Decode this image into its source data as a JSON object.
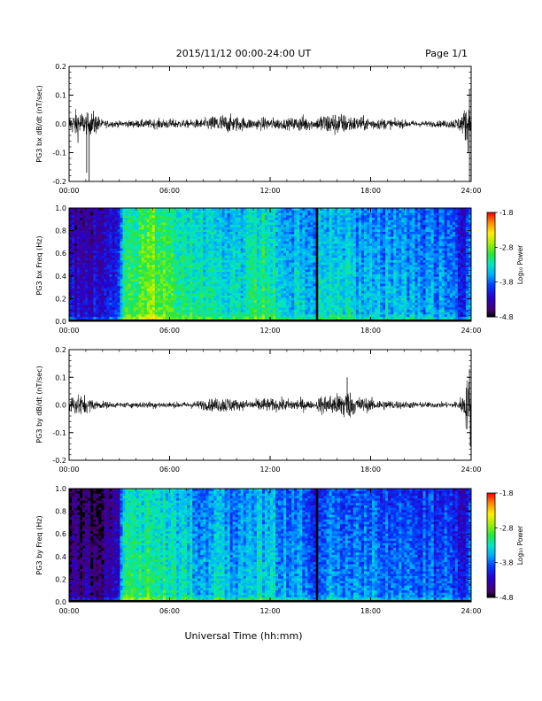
{
  "header": {
    "title": "2015/11/12  00:00-24:00 UT",
    "page": "Page 1/1"
  },
  "footer": {
    "xlabel": "Universal Time (hh:mm)"
  },
  "colors": {
    "trace": "#000000",
    "background": "#ffffff"
  },
  "colorbar": {
    "label": "Log₁₀ Power",
    "ticks": [
      "-1.8",
      "-2.8",
      "-3.8",
      "-4.8"
    ],
    "range": [
      -4.8,
      -1.8
    ]
  },
  "chart_data": [
    {
      "type": "line",
      "ylabel": "PG3 bx dB/dt (nT/sec)",
      "xlim": [
        0,
        24
      ],
      "xticks": [
        "00:00",
        "06:00",
        "12:00",
        "18:00",
        "24:00"
      ],
      "ylim": [
        -0.2,
        0.2
      ],
      "yticks": [
        "0.2",
        "0.1",
        "0.0",
        "-0.1",
        "-0.2"
      ],
      "envelope": {
        "hours": [
          0,
          0.5,
          1,
          1.5,
          2,
          3,
          4,
          5,
          6,
          7,
          8,
          9,
          9.5,
          10,
          11,
          11.5,
          12,
          13,
          14,
          14.7,
          15,
          16,
          17,
          18,
          19,
          20,
          21,
          22,
          22.5,
          23,
          23.5,
          23.8,
          24
        ],
        "amplitude": [
          0.03,
          0.06,
          0.04,
          0.05,
          0.015,
          0.012,
          0.015,
          0.018,
          0.02,
          0.015,
          0.02,
          0.04,
          0.035,
          0.03,
          0.02,
          0.025,
          0.025,
          0.02,
          0.035,
          0.015,
          0.04,
          0.045,
          0.03,
          0.025,
          0.02,
          0.015,
          0.012,
          0.012,
          0.015,
          0.02,
          0.04,
          0.1,
          0.03
        ]
      },
      "spikes": [
        {
          "hour": 1.05,
          "value": -0.17
        },
        {
          "hour": 1.2,
          "value": -0.2
        },
        {
          "hour": 23.9,
          "value": -0.21
        },
        {
          "hour": 23.9,
          "value": 0.12
        }
      ]
    },
    {
      "type": "heatmap",
      "ylabel": "PG3 bx Freq (Hz)",
      "xlim": [
        0,
        24
      ],
      "xticks": [
        "00:00",
        "06:00",
        "12:00",
        "18:00",
        "24:00"
      ],
      "ylim": [
        0,
        1
      ],
      "yticks": [
        "1.0",
        "0.8",
        "0.6",
        "0.4",
        "0.2",
        "0.0"
      ],
      "gap_hour": 14.8,
      "power_profile": {
        "hours": [
          0,
          1,
          2,
          3,
          3.2,
          4,
          5,
          6,
          7,
          8,
          9,
          10,
          11,
          12,
          13,
          14,
          14.8,
          15,
          16,
          17,
          18,
          19,
          20,
          21,
          22,
          23,
          23.5,
          24
        ],
        "log_power": [
          -4.2,
          -4.3,
          -4.1,
          -4.0,
          -3.0,
          -2.9,
          -2.75,
          -2.9,
          -3.1,
          -3.2,
          -3.15,
          -3.35,
          -3.05,
          -3.15,
          -3.35,
          -3.4,
          -3.5,
          -3.3,
          -3.3,
          -3.4,
          -3.5,
          -3.45,
          -3.5,
          -3.55,
          -3.6,
          -3.6,
          -4.0,
          -3.4
        ]
      }
    },
    {
      "type": "line",
      "ylabel": "PG3 by dB/dt (nT/sec)",
      "xlim": [
        0,
        24
      ],
      "xticks": [
        "00:00",
        "06:00",
        "12:00",
        "18:00",
        "24:00"
      ],
      "ylim": [
        -0.2,
        0.2
      ],
      "yticks": [
        "0.2",
        "0.1",
        "0.0",
        "-0.1",
        "-0.2"
      ],
      "envelope": {
        "hours": [
          0,
          0.5,
          1,
          1.5,
          2,
          3,
          4,
          5,
          6,
          7,
          8,
          9,
          9.5,
          10,
          11,
          11.5,
          12,
          13,
          14,
          14.7,
          15,
          16,
          16.5,
          17,
          18,
          19,
          20,
          21,
          22,
          23,
          23.5,
          23.8,
          24
        ],
        "amplitude": [
          0.03,
          0.05,
          0.035,
          0.02,
          0.015,
          0.01,
          0.012,
          0.015,
          0.012,
          0.012,
          0.02,
          0.03,
          0.035,
          0.02,
          0.02,
          0.03,
          0.025,
          0.025,
          0.025,
          0.01,
          0.04,
          0.045,
          0.07,
          0.04,
          0.025,
          0.02,
          0.015,
          0.012,
          0.012,
          0.012,
          0.04,
          0.12,
          0.06
        ]
      },
      "spikes": [
        {
          "hour": 16.6,
          "value": 0.1
        },
        {
          "hour": 23.95,
          "value": -0.15
        },
        {
          "hour": 23.9,
          "value": 0.13
        }
      ]
    },
    {
      "type": "heatmap",
      "ylabel": "PG3 by Freq (Hz)",
      "xlim": [
        0,
        24
      ],
      "xticks": [
        "00:00",
        "06:00",
        "12:00",
        "18:00",
        "24:00"
      ],
      "ylim": [
        0,
        1
      ],
      "yticks": [
        "1.0",
        "0.8",
        "0.6",
        "0.4",
        "0.2",
        "0.0"
      ],
      "gap_hour": 14.8,
      "power_profile": {
        "hours": [
          0,
          1,
          2,
          3,
          3.2,
          4,
          5,
          6,
          7,
          8,
          9,
          10,
          11,
          12,
          13,
          14,
          14.8,
          15,
          16,
          17,
          18,
          19,
          20,
          21,
          22,
          23,
          23.5,
          24
        ],
        "log_power": [
          -4.5,
          -4.5,
          -4.4,
          -4.3,
          -3.2,
          -3.1,
          -3.0,
          -3.2,
          -3.3,
          -3.5,
          -3.4,
          -3.6,
          -3.3,
          -3.35,
          -3.55,
          -3.6,
          -3.8,
          -3.6,
          -3.55,
          -3.65,
          -3.6,
          -3.7,
          -3.7,
          -3.75,
          -3.8,
          -3.9,
          -4.2,
          -3.6
        ]
      }
    }
  ]
}
